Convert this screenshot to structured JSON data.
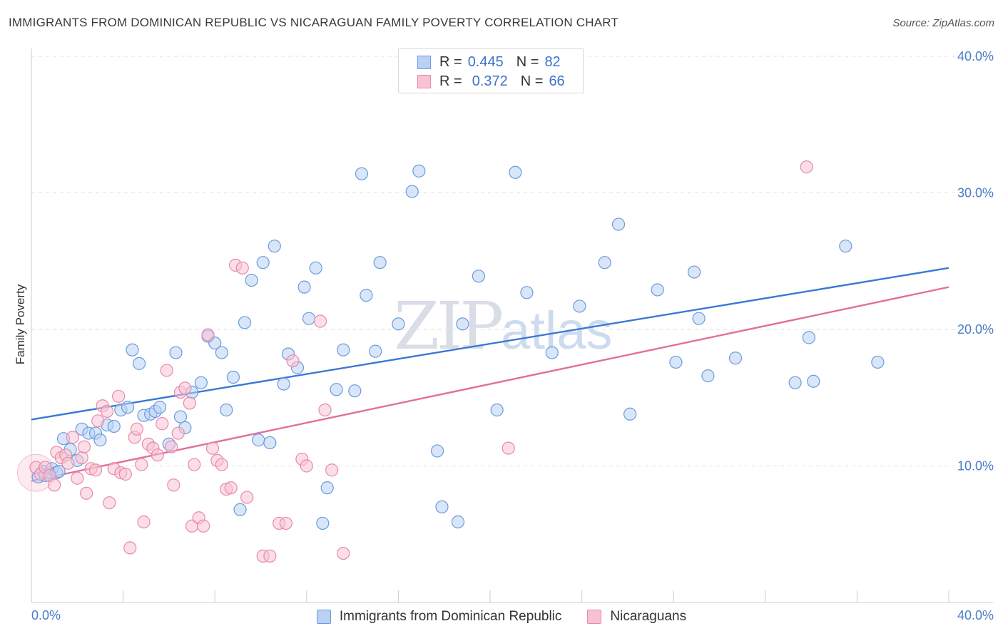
{
  "title": "IMMIGRANTS FROM DOMINICAN REPUBLIC VS NICARAGUAN FAMILY POVERTY CORRELATION CHART",
  "source": "Source: ZipAtlas.com",
  "watermark": {
    "zip": "ZIP",
    "atlas": "atlas"
  },
  "legend_top": {
    "rows": [
      {
        "r_label": "R =",
        "r_value": "0.445",
        "n_label": "N =",
        "n_value": "82"
      },
      {
        "r_label": "R =",
        "r_value": "0.372",
        "n_label": "N =",
        "n_value": "66"
      }
    ]
  },
  "chart_data": {
    "type": "scatter",
    "title": "IMMIGRANTS FROM DOMINICAN REPUBLIC VS NICARAGUAN FAMILY POVERTY CORRELATION CHART",
    "xlabel": "",
    "ylabel": "Family Poverty",
    "xlim": [
      0,
      40
    ],
    "ylim": [
      0,
      40
    ],
    "x_tick_labels": [
      "0.0%",
      "40.0%"
    ],
    "y_ticks": [
      10,
      20,
      30,
      40
    ],
    "y_tick_labels": [
      "10.0%",
      "20.0%",
      "30.0%",
      "40.0%"
    ],
    "grid": true,
    "legend_placement": "bottom",
    "colors": {
      "blue_fill": "#b9d1f3",
      "blue_stroke": "#6a9be0",
      "blue_line": "#3a78d4",
      "pink_fill": "#f7c3d4",
      "pink_stroke": "#e88aa8",
      "pink_line": "#e0709a"
    },
    "series": [
      {
        "name": "Immigrants from Dominican Republic",
        "color": "#6a9be0",
        "trend": {
          "x": [
            0,
            40
          ],
          "y": [
            13.4,
            24.5
          ]
        },
        "points": [
          [
            0.3,
            9.2
          ],
          [
            0.5,
            9.6
          ],
          [
            0.6,
            9.3
          ],
          [
            0.8,
            9.5
          ],
          [
            0.9,
            9.8
          ],
          [
            1.1,
            9.5
          ],
          [
            1.2,
            9.6
          ],
          [
            1.4,
            12.0
          ],
          [
            1.7,
            11.2
          ],
          [
            2.0,
            10.4
          ],
          [
            2.2,
            12.7
          ],
          [
            2.5,
            12.4
          ],
          [
            2.8,
            12.4
          ],
          [
            3.0,
            11.9
          ],
          [
            3.3,
            13.0
          ],
          [
            3.6,
            12.9
          ],
          [
            3.9,
            14.1
          ],
          [
            4.2,
            14.3
          ],
          [
            4.4,
            18.5
          ],
          [
            4.7,
            17.5
          ],
          [
            4.9,
            13.7
          ],
          [
            5.2,
            13.8
          ],
          [
            5.4,
            14.0
          ],
          [
            5.6,
            14.3
          ],
          [
            6.0,
            11.6
          ],
          [
            6.3,
            18.3
          ],
          [
            6.5,
            13.6
          ],
          [
            6.7,
            12.8
          ],
          [
            7.0,
            15.4
          ],
          [
            7.4,
            16.1
          ],
          [
            7.7,
            19.5
          ],
          [
            8.0,
            19.0
          ],
          [
            8.3,
            18.3
          ],
          [
            8.5,
            14.1
          ],
          [
            8.8,
            16.5
          ],
          [
            9.1,
            6.8
          ],
          [
            9.3,
            20.5
          ],
          [
            9.6,
            23.6
          ],
          [
            10.1,
            24.9
          ],
          [
            10.6,
            26.1
          ],
          [
            9.9,
            11.9
          ],
          [
            10.4,
            11.7
          ],
          [
            11.0,
            16.0
          ],
          [
            11.2,
            18.2
          ],
          [
            11.6,
            17.2
          ],
          [
            11.9,
            23.1
          ],
          [
            12.1,
            20.8
          ],
          [
            12.4,
            24.5
          ],
          [
            12.7,
            5.8
          ],
          [
            12.9,
            8.4
          ],
          [
            13.3,
            15.6
          ],
          [
            13.6,
            18.5
          ],
          [
            14.1,
            15.5
          ],
          [
            14.4,
            31.4
          ],
          [
            14.6,
            22.5
          ],
          [
            15.0,
            18.4
          ],
          [
            15.2,
            24.9
          ],
          [
            16.0,
            20.4
          ],
          [
            16.6,
            30.1
          ],
          [
            16.9,
            31.6
          ],
          [
            17.7,
            11.1
          ],
          [
            17.9,
            7.0
          ],
          [
            18.6,
            5.9
          ],
          [
            18.8,
            20.4
          ],
          [
            19.5,
            23.9
          ],
          [
            20.3,
            14.1
          ],
          [
            21.1,
            31.5
          ],
          [
            21.6,
            22.7
          ],
          [
            22.7,
            18.3
          ],
          [
            23.9,
            21.7
          ],
          [
            25.0,
            24.9
          ],
          [
            25.6,
            27.7
          ],
          [
            26.1,
            13.8
          ],
          [
            27.3,
            22.9
          ],
          [
            28.1,
            17.6
          ],
          [
            28.9,
            24.2
          ],
          [
            29.1,
            20.8
          ],
          [
            29.5,
            16.6
          ],
          [
            30.7,
            17.9
          ],
          [
            33.3,
            16.1
          ],
          [
            33.9,
            19.4
          ],
          [
            34.1,
            16.2
          ],
          [
            35.5,
            26.1
          ],
          [
            36.9,
            17.6
          ]
        ]
      },
      {
        "name": "Nicaraguans",
        "color": "#e88aa8",
        "trend": {
          "x": [
            0,
            40
          ],
          "y": [
            8.9,
            23.1
          ]
        },
        "points": [
          [
            0.2,
            9.9
          ],
          [
            0.4,
            9.4
          ],
          [
            0.6,
            9.9
          ],
          [
            0.8,
            9.3
          ],
          [
            1.0,
            8.6
          ],
          [
            1.1,
            11.0
          ],
          [
            1.3,
            10.6
          ],
          [
            1.5,
            10.8
          ],
          [
            1.6,
            10.2
          ],
          [
            1.8,
            12.1
          ],
          [
            2.0,
            9.1
          ],
          [
            2.2,
            10.6
          ],
          [
            2.3,
            11.4
          ],
          [
            2.4,
            8.0
          ],
          [
            2.6,
            9.8
          ],
          [
            2.8,
            9.7
          ],
          [
            2.9,
            13.3
          ],
          [
            3.1,
            14.4
          ],
          [
            3.3,
            14.0
          ],
          [
            3.4,
            7.3
          ],
          [
            3.6,
            9.8
          ],
          [
            3.8,
            15.1
          ],
          [
            3.9,
            9.5
          ],
          [
            4.1,
            9.4
          ],
          [
            4.3,
            4.0
          ],
          [
            4.5,
            12.1
          ],
          [
            4.6,
            12.7
          ],
          [
            4.8,
            10.1
          ],
          [
            4.9,
            5.9
          ],
          [
            5.1,
            11.6
          ],
          [
            5.3,
            11.3
          ],
          [
            5.5,
            10.8
          ],
          [
            5.7,
            13.1
          ],
          [
            5.9,
            17.0
          ],
          [
            6.1,
            11.4
          ],
          [
            6.2,
            8.6
          ],
          [
            6.4,
            12.4
          ],
          [
            6.5,
            15.4
          ],
          [
            6.7,
            15.7
          ],
          [
            6.9,
            14.6
          ],
          [
            7.0,
            5.6
          ],
          [
            7.1,
            10.1
          ],
          [
            7.3,
            6.2
          ],
          [
            7.5,
            5.6
          ],
          [
            7.7,
            19.6
          ],
          [
            7.9,
            11.3
          ],
          [
            8.1,
            10.4
          ],
          [
            8.3,
            10.1
          ],
          [
            8.5,
            8.3
          ],
          [
            8.7,
            8.4
          ],
          [
            8.9,
            24.7
          ],
          [
            9.2,
            24.5
          ],
          [
            9.4,
            7.7
          ],
          [
            10.1,
            3.4
          ],
          [
            10.4,
            3.4
          ],
          [
            10.8,
            5.8
          ],
          [
            11.1,
            5.8
          ],
          [
            11.4,
            17.7
          ],
          [
            11.8,
            10.5
          ],
          [
            12.0,
            10.0
          ],
          [
            12.6,
            20.6
          ],
          [
            12.8,
            14.1
          ],
          [
            13.1,
            9.7
          ],
          [
            13.6,
            3.6
          ],
          [
            20.8,
            11.3
          ],
          [
            33.8,
            31.9
          ]
        ]
      }
    ]
  },
  "legend_bottom": [
    {
      "label": "Immigrants from Dominican Republic"
    },
    {
      "label": "Nicaraguans"
    }
  ]
}
